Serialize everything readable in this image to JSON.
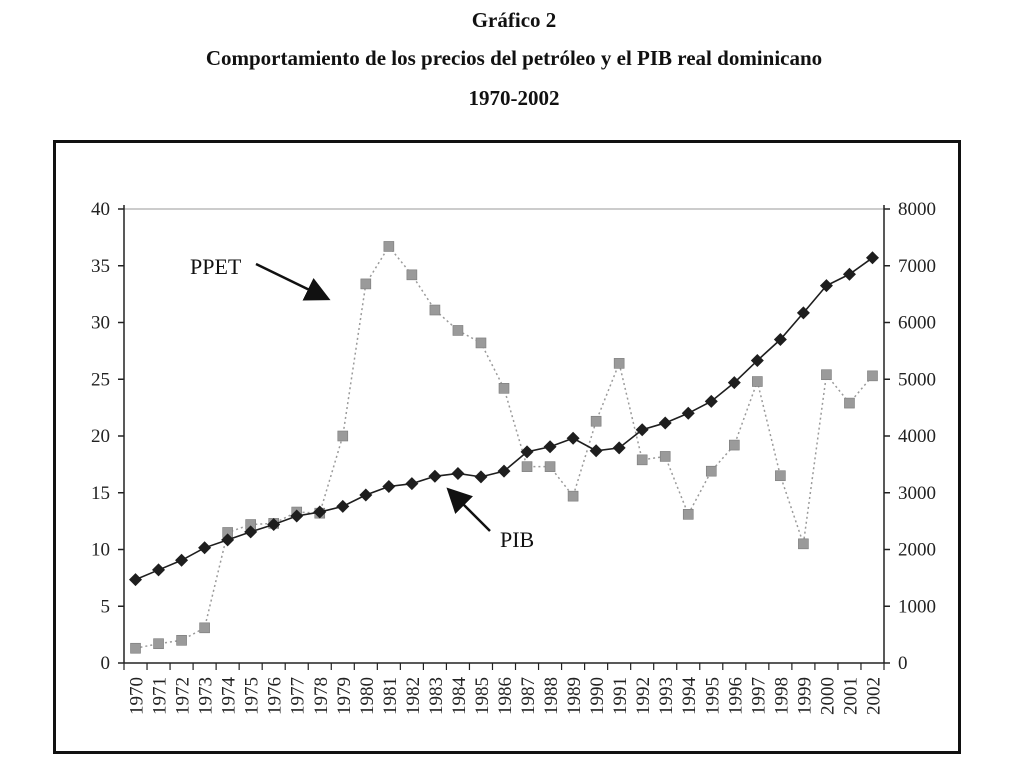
{
  "figure": {
    "label": "Gráfico 2",
    "title": "Comportamiento de los precios del petróleo y el PIB real dominicano",
    "subtitle": "1970-2002"
  },
  "colors": {
    "ppet": "#9a9a9a",
    "pib": "#1e1e1e",
    "axis": "#222222"
  },
  "chart_data": {
    "type": "line",
    "title": "Comportamiento de los precios del petróleo y el PIB real dominicano",
    "subtitle": "1970-2002",
    "x": [
      "1970",
      "1971",
      "1972",
      "1973",
      "1974",
      "1975",
      "1976",
      "1977",
      "1978",
      "1979",
      "1980",
      "1981",
      "1982",
      "1983",
      "1984",
      "1985",
      "1986",
      "1987",
      "1988",
      "1989",
      "1990",
      "1991",
      "1992",
      "1993",
      "1994",
      "1995",
      "1996",
      "1997",
      "1998",
      "1999",
      "2000",
      "2001",
      "2002"
    ],
    "y_left": {
      "range": [
        0,
        40
      ],
      "ticks": [
        "0",
        "5",
        "10",
        "15",
        "20",
        "25",
        "30",
        "35",
        "40"
      ]
    },
    "y_right": {
      "range": [
        0,
        8000
      ],
      "ticks": [
        "0",
        "1000",
        "2000",
        "3000",
        "4000",
        "5000",
        "6000",
        "7000",
        "8000"
      ]
    },
    "grid": false,
    "legend": "none",
    "series": [
      {
        "name": "PPET",
        "axis": "left",
        "marker": "square",
        "line": "dotted",
        "values": [
          1.3,
          1.7,
          2.0,
          3.1,
          11.5,
          12.2,
          12.3,
          13.3,
          13.2,
          20.0,
          33.4,
          36.7,
          34.2,
          31.1,
          29.3,
          28.2,
          24.2,
          17.3,
          17.3,
          14.7,
          21.3,
          26.4,
          17.9,
          18.2,
          13.1,
          16.9,
          19.2,
          24.8,
          16.5,
          10.5,
          25.4,
          22.9,
          25.3
        ]
      },
      {
        "name": "PIB",
        "axis": "right",
        "marker": "diamond",
        "line": "solid",
        "values": [
          1470,
          1640,
          1810,
          2030,
          2170,
          2310,
          2440,
          2590,
          2660,
          2760,
          2960,
          3110,
          3160,
          3290,
          3340,
          3280,
          3380,
          3720,
          3810,
          3960,
          3740,
          3790,
          4110,
          4230,
          4400,
          4610,
          4940,
          5330,
          5700,
          6170,
          6650,
          6850,
          7140
        ]
      }
    ],
    "annotations": [
      {
        "text": "PPET",
        "points_to": "PPET"
      },
      {
        "text": "PIB",
        "points_to": "PIB"
      }
    ]
  }
}
